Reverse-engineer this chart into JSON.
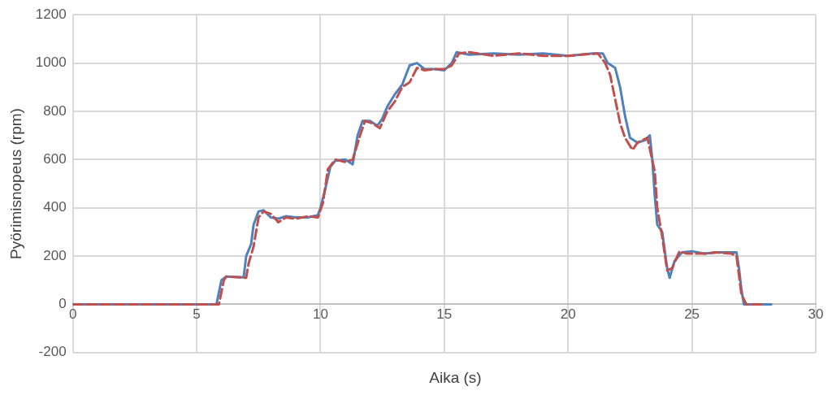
{
  "chart_data": {
    "type": "line",
    "xlabel": "Aika (s)",
    "ylabel": "Pyörimisnopeus (rpm)",
    "xlim": [
      0,
      30
    ],
    "xticks": [
      0,
      5,
      10,
      15,
      20,
      25,
      30
    ],
    "ylim": [
      -200,
      1200
    ],
    "yticks": [
      -200,
      0,
      200,
      400,
      600,
      800,
      1000,
      1200
    ],
    "grid": true,
    "legend": false,
    "marker": "none",
    "series": [
      {
        "color": "#4f81bd",
        "line_style": "solid",
        "x": [
          0,
          5.8,
          6.0,
          6.2,
          6.9,
          7.0,
          7.2,
          7.3,
          7.5,
          7.7,
          8.0,
          8.3,
          8.6,
          9.0,
          9.5,
          9.9,
          10.0,
          10.2,
          10.4,
          10.6,
          11.0,
          11.3,
          11.5,
          11.7,
          12.0,
          12.3,
          12.5,
          12.7,
          13.0,
          13.3,
          13.6,
          13.9,
          14.2,
          14.6,
          15.0,
          15.3,
          15.5,
          16.0,
          17,
          18,
          19,
          20,
          21.0,
          21.4,
          21.6,
          21.9,
          22.1,
          22.3,
          22.5,
          22.8,
          23.1,
          23.3,
          23.4,
          23.5,
          23.6,
          23.8,
          24.0,
          24.1,
          24.3,
          24.6,
          25,
          25.5,
          26,
          26.5,
          26.8,
          26.9,
          27.0,
          27.1,
          28.2
        ],
        "values": [
          0,
          0,
          100,
          115,
          112,
          200,
          250,
          330,
          385,
          390,
          360,
          355,
          365,
          360,
          360,
          370,
          400,
          480,
          570,
          595,
          600,
          580,
          700,
          760,
          760,
          740,
          770,
          820,
          870,
          910,
          990,
          1000,
          975,
          975,
          970,
          1000,
          1045,
          1035,
          1040,
          1035,
          1040,
          1030,
          1040,
          1040,
          1000,
          980,
          900,
          780,
          690,
          670,
          680,
          700,
          600,
          450,
          330,
          300,
          150,
          110,
          180,
          215,
          220,
          210,
          215,
          215,
          215,
          150,
          60,
          0,
          0
        ]
      },
      {
        "color": "#c0504d",
        "line_style": "dashed",
        "x": [
          0,
          5.9,
          6.1,
          6.2,
          7.0,
          7.1,
          7.3,
          7.5,
          7.7,
          8.0,
          8.3,
          8.6,
          9.0,
          9.5,
          9.9,
          10.1,
          10.3,
          10.6,
          11.0,
          11.3,
          11.6,
          11.8,
          12.1,
          12.4,
          12.7,
          13.0,
          13.3,
          13.6,
          13.9,
          14.2,
          14.6,
          15.0,
          15.3,
          15.6,
          16.0,
          17,
          18,
          19,
          20,
          21.2,
          21.5,
          21.7,
          21.9,
          22.1,
          22.3,
          22.6,
          22.8,
          23.2,
          23.5,
          23.6,
          23.8,
          24.0,
          24.2,
          24.5,
          24.8,
          25.5,
          26,
          26.6,
          26.8,
          26.9,
          27.0,
          27.2,
          27.8
        ],
        "values": [
          0,
          0,
          100,
          115,
          110,
          170,
          240,
          360,
          385,
          375,
          340,
          360,
          355,
          365,
          360,
          420,
          560,
          600,
          590,
          600,
          700,
          760,
          750,
          730,
          800,
          840,
          900,
          920,
          980,
          970,
          975,
          975,
          990,
          1040,
          1045,
          1030,
          1040,
          1030,
          1030,
          1040,
          1000,
          950,
          850,
          750,
          690,
          640,
          670,
          690,
          550,
          400,
          280,
          140,
          150,
          220,
          210,
          210,
          215,
          210,
          200,
          120,
          40,
          0,
          0
        ]
      }
    ]
  }
}
